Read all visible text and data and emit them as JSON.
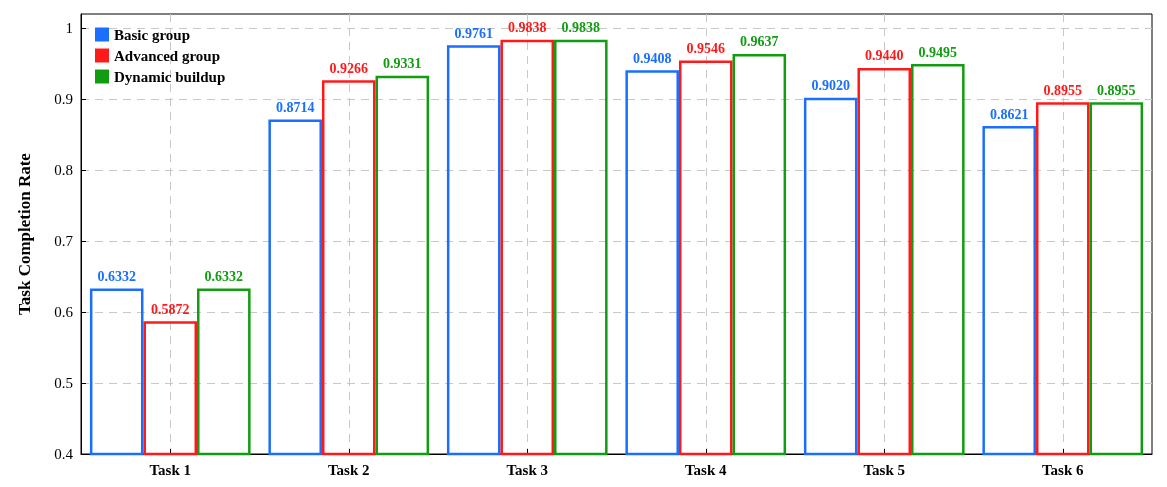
{
  "chart_data": {
    "type": "bar",
    "ylabel": "Task Completion Rate",
    "categories": [
      "Task 1",
      "Task 2",
      "Task 3",
      "Task 4",
      "Task 5",
      "Task 6"
    ],
    "series": [
      {
        "name": "Basic group",
        "color": "#1a6fff",
        "values": [
          0.6332,
          0.8714,
          0.9761,
          0.9408,
          0.902,
          0.8621
        ],
        "value_labels": [
          "0.6332",
          "0.8714",
          "0.9761",
          "0.9408",
          "0.9020",
          "0.8621"
        ]
      },
      {
        "name": "Advanced group",
        "color": "#ff1a1a",
        "values": [
          0.5872,
          0.9266,
          0.9838,
          0.9546,
          0.944,
          0.8955
        ],
        "value_labels": [
          "0.5872",
          "0.9266",
          "0.9838",
          "0.9546",
          "0.9440",
          "0.8955"
        ]
      },
      {
        "name": "Dynamic buildup",
        "color": "#129c12",
        "values": [
          0.6332,
          0.9331,
          0.9838,
          0.9637,
          0.9495,
          0.8955
        ],
        "value_labels": [
          "0.6332",
          "0.9331",
          "0.9838",
          "0.9637",
          "0.9495",
          "0.8955"
        ]
      }
    ],
    "ylim": [
      0.4,
      1.02
    ],
    "yticks": [
      0.4,
      0.5,
      0.6,
      0.7,
      0.8,
      0.9,
      {
        "value": 1.0,
        "label": "1"
      }
    ],
    "grid": true,
    "legend": "top left"
  }
}
